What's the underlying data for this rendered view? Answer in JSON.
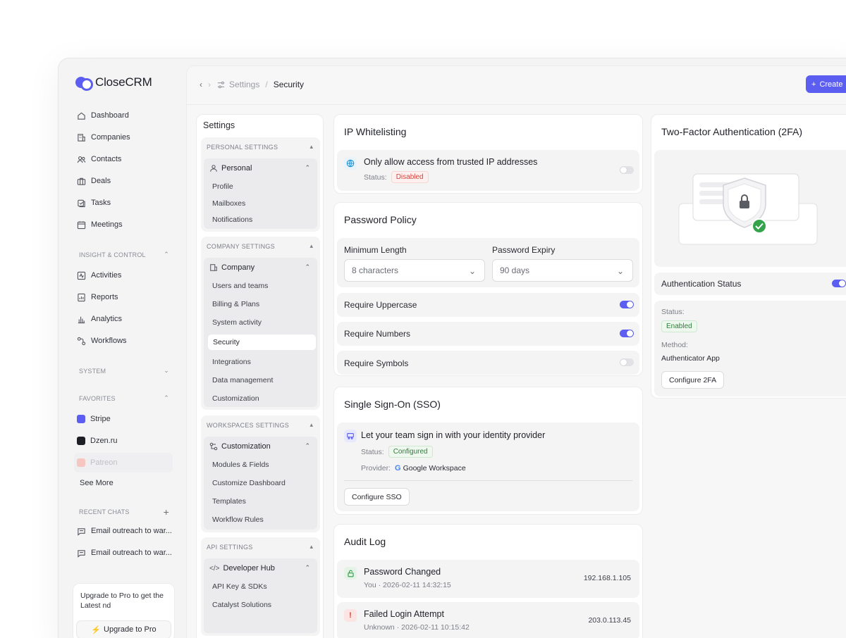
{
  "brand": {
    "name": "CloseCRM",
    "accent": "#5b5ef0"
  },
  "sidebar": {
    "nav": [
      {
        "label": "Dashboard",
        "icon": "home-icon"
      },
      {
        "label": "Companies",
        "icon": "building-icon"
      },
      {
        "label": "Contacts",
        "icon": "users-icon"
      },
      {
        "label": "Deals",
        "icon": "briefcase-icon"
      },
      {
        "label": "Tasks",
        "icon": "tasks-icon"
      },
      {
        "label": "Meetings",
        "icon": "calendar-icon"
      }
    ],
    "insight_label": "INSIGHT & CONTROL",
    "insight": [
      {
        "label": "Activities",
        "icon": "activity-icon"
      },
      {
        "label": "Reports",
        "icon": "report-icon"
      },
      {
        "label": "Analytics",
        "icon": "chart-icon"
      },
      {
        "label": "Workflows",
        "icon": "workflow-icon"
      }
    ],
    "system_label": "SYSTEM",
    "favorites_label": "FAVORITES",
    "favorites": [
      {
        "label": "Stripe",
        "color": "#5b5ef0"
      },
      {
        "label": "Dzen.ru",
        "color": "#1e1f26"
      },
      {
        "label": "Patreon",
        "color": "#f2a8a0"
      }
    ],
    "see_more": "See More",
    "recent_label": "RECENT CHATS",
    "recent": [
      {
        "label": "Email outreach to war..."
      },
      {
        "label": "Email outreach to war..."
      }
    ],
    "upgrade": {
      "text": "Upgrade to Pro to get the Latest nd",
      "button": "Upgrade to Pro"
    }
  },
  "topbar": {
    "breadcrumb_parent": "Settings",
    "breadcrumb_sep": "/",
    "breadcrumb_current": "Security",
    "create_label": "Create"
  },
  "settings": {
    "title": "Settings",
    "personal": {
      "label": "PERSONAL SETTINGS",
      "head": "Personal",
      "items": [
        "Profile",
        "Mailboxes",
        "Notifications"
      ]
    },
    "company": {
      "label": "COMPANY SETTINGS",
      "head": "Company",
      "items": [
        "Users and teams",
        "Billing & Plans",
        "System activity",
        "Security",
        "Integrations",
        "Data management",
        "Customization"
      ]
    },
    "workspaces": {
      "label": "WORKSPACES SETTINGS",
      "head": "Customization",
      "items": [
        "Modules & Fields",
        "Customize Dashboard",
        "Templates",
        "Workflow Rules"
      ]
    },
    "api": {
      "label": "API SETTINGS",
      "head": "Developer Hub",
      "items": [
        "API Key & SDKs",
        "Catalyst Solutions"
      ]
    }
  },
  "ip": {
    "title": "IP Whitelisting",
    "desc": "Only allow access from trusted IP addresses",
    "status_label": "Status:",
    "status": "Disabled",
    "enabled": false
  },
  "password": {
    "title": "Password Policy",
    "min_label": "Minimum Length",
    "min_value": "8 characters",
    "expiry_label": "Password Expiry",
    "expiry_value": "90 days",
    "rules": [
      {
        "label": "Require Uppercase",
        "on": true
      },
      {
        "label": "Require Numbers",
        "on": true
      },
      {
        "label": "Require Symbols",
        "on": false
      }
    ]
  },
  "sso": {
    "title": "Single Sign-On (SSO)",
    "desc": "Let your team sign in with your identity provider",
    "status_label": "Status:",
    "status": "Configured",
    "provider_label": "Provider:",
    "provider": "Google Workspace",
    "button": "Configure SSO"
  },
  "audit": {
    "title": "Audit Log",
    "entries": [
      {
        "title": "Password Changed",
        "meta": "You · 2026-02-11 14:32:15",
        "ip": "192.168.1.105",
        "type": "success"
      },
      {
        "title": "Failed Login Attempt",
        "meta": "Unknown · 2026-02-11 10:15:42",
        "ip": "203.0.113.45",
        "type": "alert"
      }
    ]
  },
  "twofa": {
    "title": "Two-Factor Authentication (2FA)",
    "status_row": "Authentication Status",
    "enabled": true,
    "status_label": "Status:",
    "status": "Enabled",
    "method_label": "Method:",
    "method": "Authenticator App",
    "button": "Configure 2FA"
  }
}
